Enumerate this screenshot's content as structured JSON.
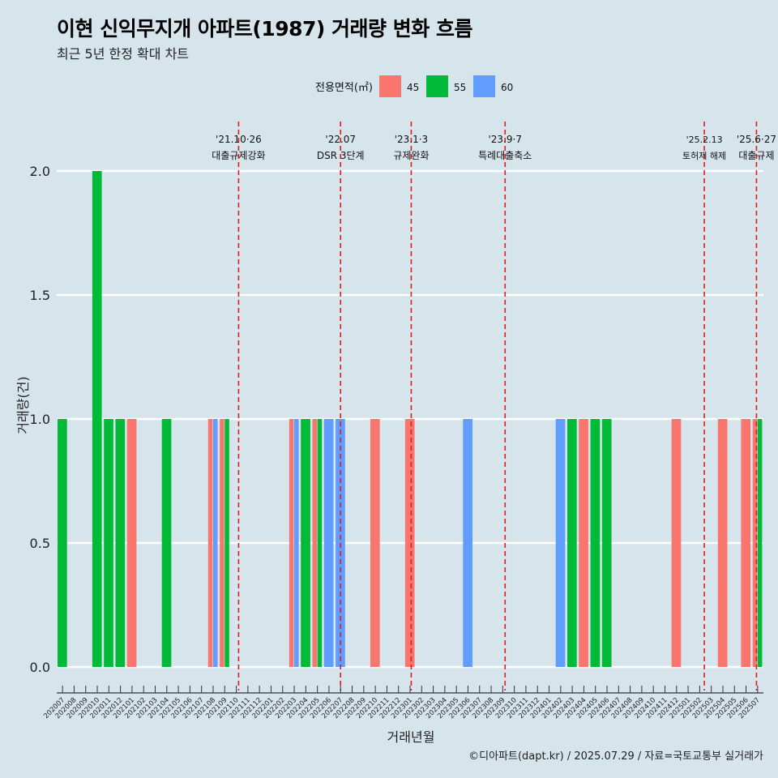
{
  "title": "이현 신익무지개 아파트(1987) 거래량 변화 흐름",
  "subtitle": "최근 5년 한정 확대 차트",
  "caption": "©디아파트(dapt.kr) / 2025.07.29 / 자료=국토교통부 실거래가",
  "chart_data": {
    "type": "bar",
    "xlabel": "거래년월",
    "ylabel": "거래량(건)",
    "ylim": [
      0,
      2
    ],
    "y_ticks": [
      "0.0",
      "0.5",
      "1.0",
      "1.5",
      "2.0"
    ],
    "grid": true,
    "legend": {
      "title": "전용면적(㎡)",
      "position": "top",
      "entries": [
        {
          "name": "45",
          "color": "#f8766d"
        },
        {
          "name": "55",
          "color": "#00ba38"
        },
        {
          "name": "60",
          "color": "#619cff"
        }
      ]
    },
    "categories": [
      "202007",
      "202008",
      "202009",
      "202010",
      "202011",
      "202012",
      "202101",
      "202102",
      "202103",
      "202104",
      "202105",
      "202106",
      "202107",
      "202108",
      "202109",
      "202110",
      "202111",
      "202112",
      "202201",
      "202202",
      "202203",
      "202204",
      "202205",
      "202206",
      "202207",
      "202208",
      "202209",
      "202210",
      "202211",
      "202212",
      "202301",
      "202302",
      "202303",
      "202304",
      "202305",
      "202306",
      "202307",
      "202308",
      "202309",
      "202310",
      "202311",
      "202312",
      "202401",
      "202402",
      "202403",
      "202404",
      "202405",
      "202406",
      "202407",
      "202408",
      "202409",
      "202410",
      "202411",
      "202412",
      "202501",
      "202502",
      "202503",
      "202504",
      "202505",
      "202506",
      "202507"
    ],
    "bars": [
      {
        "month": "202007",
        "series": "55",
        "value": 1
      },
      {
        "month": "202010",
        "series": "55",
        "value": 2
      },
      {
        "month": "202011",
        "series": "55",
        "value": 1
      },
      {
        "month": "202012",
        "series": "55",
        "value": 1
      },
      {
        "month": "202101",
        "series": "45",
        "value": 1
      },
      {
        "month": "202104",
        "series": "55",
        "value": 1
      },
      {
        "month": "202108",
        "series": "45",
        "value": 1
      },
      {
        "month": "202108",
        "series": "60",
        "value": 1
      },
      {
        "month": "202109",
        "series": "45",
        "value": 1
      },
      {
        "month": "202109",
        "series": "55",
        "value": 1
      },
      {
        "month": "202203",
        "series": "45",
        "value": 1
      },
      {
        "month": "202203",
        "series": "60",
        "value": 1
      },
      {
        "month": "202204",
        "series": "55",
        "value": 1
      },
      {
        "month": "202205",
        "series": "45",
        "value": 1
      },
      {
        "month": "202205",
        "series": "55",
        "value": 1
      },
      {
        "month": "202206",
        "series": "60",
        "value": 1
      },
      {
        "month": "202207",
        "series": "60",
        "value": 1
      },
      {
        "month": "202210",
        "series": "45",
        "value": 1
      },
      {
        "month": "202301",
        "series": "45",
        "value": 1
      },
      {
        "month": "202306",
        "series": "60",
        "value": 1
      },
      {
        "month": "202402",
        "series": "60",
        "value": 1
      },
      {
        "month": "202403",
        "series": "55",
        "value": 1
      },
      {
        "month": "202404",
        "series": "45",
        "value": 1
      },
      {
        "month": "202405",
        "series": "55",
        "value": 1
      },
      {
        "month": "202406",
        "series": "55",
        "value": 1
      },
      {
        "month": "202412",
        "series": "45",
        "value": 1
      },
      {
        "month": "202504",
        "series": "45",
        "value": 1
      },
      {
        "month": "202506",
        "series": "45",
        "value": 1
      },
      {
        "month": "202507",
        "series": "45",
        "value": 1
      },
      {
        "month": "202507",
        "series": "55",
        "value": 1
      }
    ],
    "events": [
      {
        "date": "'21.10·26",
        "label": "대출규제강화",
        "month": "202110",
        "offset": 0.2
      },
      {
        "date": "'22.07",
        "label": "DSR 3단계",
        "month": "202207",
        "offset": 0.0
      },
      {
        "date": "'23.1·3",
        "label": "규제완화",
        "month": "202301",
        "offset": 0.1
      },
      {
        "date": "'23.9·7",
        "label": "특례대출축소",
        "month": "202309",
        "offset": 0.2
      },
      {
        "date": "'25.2.13",
        "label": "토허제 해제",
        "month": "202502",
        "offset": 0.4,
        "small": true
      },
      {
        "date": "'25.6·27",
        "label": "대출규제",
        "month": "202506",
        "offset": 0.9
      }
    ]
  }
}
